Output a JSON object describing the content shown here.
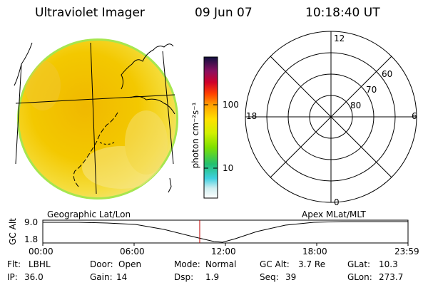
{
  "header": {
    "title": "Ultraviolet Imager",
    "date": "09 Jun 07",
    "time": "10:18:40 UT"
  },
  "colorbar": {
    "unit_label": "photon cm⁻²s⁻¹",
    "ticks": [
      "100",
      "10"
    ]
  },
  "polar": {
    "mlt_labels": [
      "12",
      "18",
      "6",
      "0"
    ],
    "lat_labels": [
      "60",
      "70",
      "80"
    ]
  },
  "timeline": {
    "left_title": "Geographic Lat/Lon",
    "right_title": "Apex MLat/MLT",
    "y_axis_label": "GC Alt",
    "y_ticks": [
      "9.0",
      "1.8"
    ],
    "x_ticks": [
      "00:00",
      "06:00",
      "12:00",
      "18:00",
      "23:59"
    ],
    "marker_time_hours": 10.311
  },
  "info": {
    "flt_label": "Flt:",
    "flt_value": "LBHL",
    "door_label": "Door:",
    "door_value": "Open",
    "mode_label": "Mode:",
    "mode_value": "Normal",
    "gcalt_label": "GC Alt:",
    "gcalt_value": "3.7 Re",
    "glat_label": "GLat:",
    "glat_value": "10.3",
    "ip_label": "IP:",
    "ip_value": "36.0",
    "gain_label": "Gain:",
    "gain_value": "14",
    "dsp_label": "Dsp:",
    "dsp_value": "1.9",
    "seq_label": "Seq:",
    "seq_value": "39",
    "glon_label": "GLon:",
    "glon_value": "273.7"
  },
  "colors": {
    "disk_main": "#f2c200",
    "disk_light": "#f4e04a",
    "disk_edge": "#9be34a",
    "marker": "#c00000"
  }
}
